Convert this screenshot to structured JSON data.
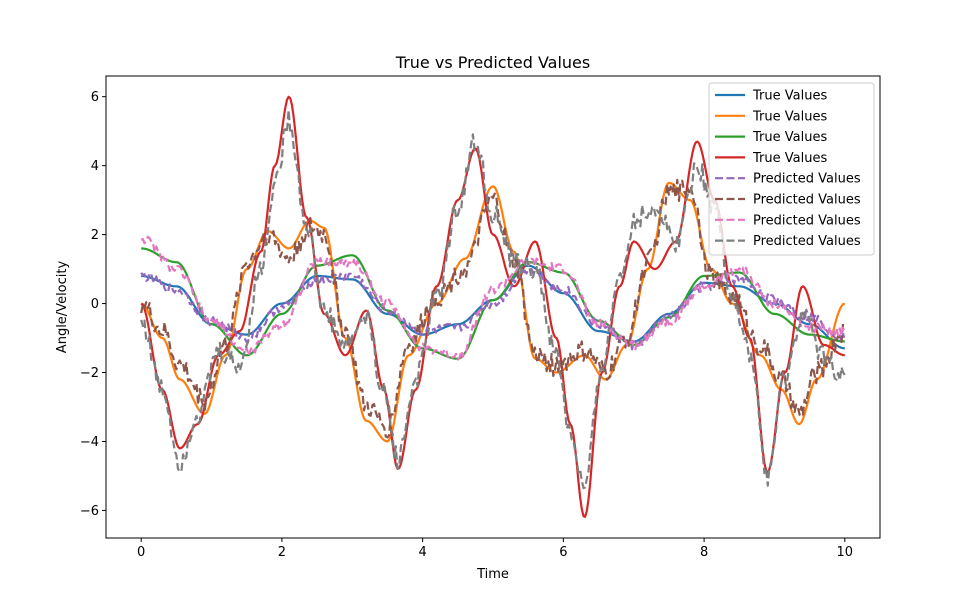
{
  "chart_data": {
    "type": "line",
    "title": "True vs Predicted Values",
    "xlabel": "Time",
    "ylabel": "Angle/Velocity",
    "xlim": [
      -0.5,
      10.5
    ],
    "ylim": [
      -6.8,
      6.6
    ],
    "xticks": [
      0,
      2,
      4,
      6,
      8,
      10
    ],
    "yticks": [
      -6,
      -4,
      -2,
      0,
      2,
      4,
      6
    ],
    "grid": false,
    "legend_position": "top-right",
    "series": [
      {
        "name": "True Values",
        "color": "#1f77b4",
        "style": "solid",
        "x": [
          0,
          0.5,
          1,
          1.5,
          2,
          2.5,
          3,
          3.5,
          4,
          4.5,
          5,
          5.5,
          6,
          6.5,
          7,
          7.5,
          8,
          8.5,
          9,
          9.5,
          10
        ],
        "y": [
          0.8,
          0.5,
          -0.6,
          -0.9,
          0.0,
          0.8,
          0.7,
          -0.3,
          -0.9,
          -0.6,
          0.1,
          1.1,
          0.3,
          -0.8,
          -1.1,
          -0.3,
          0.6,
          0.5,
          0.0,
          -0.6,
          -1.3
        ]
      },
      {
        "name": "True Values",
        "color": "#ff7f0e",
        "style": "solid",
        "x": [
          0,
          0.3,
          0.55,
          0.9,
          1.2,
          1.5,
          1.8,
          2.1,
          2.4,
          2.6,
          2.9,
          3.2,
          3.5,
          3.8,
          4.2,
          4.6,
          5.0,
          5.3,
          5.6,
          5.9,
          6.3,
          6.6,
          6.9,
          7.2,
          7.5,
          7.8,
          8.1,
          8.4,
          8.8,
          9.1,
          9.35,
          9.6,
          10
        ],
        "y": [
          0,
          -1.0,
          -2.2,
          -3.2,
          -1.5,
          1.0,
          2.1,
          1.6,
          2.4,
          2.2,
          -1.0,
          -3.4,
          -4.0,
          -1.5,
          0.0,
          1.3,
          3.4,
          1.5,
          -1.6,
          -2.0,
          -1.5,
          -2.2,
          -1.2,
          1.0,
          3.5,
          3.0,
          1.0,
          0.0,
          -1.5,
          -2.5,
          -3.5,
          -2.2,
          0.0
        ]
      },
      {
        "name": "True Values",
        "color": "#2ca02c",
        "style": "solid",
        "x": [
          0,
          0.5,
          1,
          1.5,
          2,
          2.5,
          3,
          3.5,
          4,
          4.5,
          5,
          5.5,
          6,
          6.5,
          7,
          7.5,
          8,
          8.5,
          9,
          9.5,
          10
        ],
        "y": [
          1.6,
          1.2,
          -0.6,
          -1.5,
          -0.3,
          1.1,
          1.4,
          -0.2,
          -1.3,
          -1.6,
          0.1,
          1.2,
          0.9,
          -0.5,
          -1.2,
          -0.4,
          0.8,
          0.9,
          -0.3,
          -0.9,
          -1.1
        ]
      },
      {
        "name": "True Values",
        "color": "#d62728",
        "style": "solid",
        "x": [
          0,
          0.3,
          0.55,
          0.8,
          1.1,
          1.4,
          1.7,
          1.9,
          2.1,
          2.35,
          2.6,
          2.9,
          3.2,
          3.45,
          3.65,
          3.9,
          4.2,
          4.5,
          4.75,
          5.0,
          5.3,
          5.6,
          5.9,
          6.1,
          6.3,
          6.55,
          6.8,
          7.0,
          7.3,
          7.6,
          7.9,
          8.15,
          8.4,
          8.65,
          8.9,
          9.15,
          9.4,
          9.7,
          10
        ],
        "y": [
          0,
          -2.5,
          -4.2,
          -3.5,
          -1.5,
          -0.8,
          1.5,
          4.0,
          6.0,
          2.5,
          -0.3,
          -1.5,
          -0.2,
          -2.5,
          -4.8,
          -2.5,
          0.5,
          3.0,
          4.5,
          2.0,
          0.5,
          1.8,
          -1.0,
          -3.5,
          -6.2,
          -2.0,
          0.5,
          1.8,
          1.0,
          1.8,
          4.7,
          3.0,
          0.5,
          -1.0,
          -4.9,
          -2.0,
          0.5,
          -1.2,
          -1.5
        ]
      },
      {
        "name": "Predicted Values",
        "color": "#9467bd",
        "style": "dashed",
        "x": [
          0,
          0.5,
          1,
          1.5,
          2,
          2.5,
          3,
          3.5,
          4,
          4.5,
          5,
          5.5,
          6,
          6.5,
          7,
          7.5,
          8,
          8.5,
          9,
          9.5,
          10
        ],
        "y": [
          0.8,
          0.4,
          -0.5,
          -1.0,
          -0.1,
          0.7,
          0.8,
          -0.2,
          -0.8,
          -0.7,
          0.0,
          1.0,
          0.4,
          -0.6,
          -1.2,
          -0.4,
          0.5,
          0.7,
          0.1,
          -0.4,
          -1.0
        ]
      },
      {
        "name": "Predicted Values",
        "color": "#8c564b",
        "style": "dashed",
        "x": [
          0,
          0.3,
          0.55,
          0.9,
          1.2,
          1.5,
          1.8,
          2.1,
          2.4,
          2.6,
          2.9,
          3.2,
          3.5,
          3.8,
          4.2,
          4.6,
          5.0,
          5.3,
          5.6,
          5.9,
          6.3,
          6.6,
          6.9,
          7.2,
          7.5,
          7.8,
          8.1,
          8.4,
          8.8,
          9.1,
          9.35,
          9.6,
          10
        ],
        "y": [
          0,
          -0.8,
          -1.8,
          -2.8,
          -1.2,
          1.2,
          2.0,
          1.3,
          2.2,
          2.0,
          -0.8,
          -3.0,
          -3.6,
          -1.2,
          0.2,
          1.0,
          3.0,
          1.2,
          -1.5,
          -1.8,
          -1.4,
          -2.0,
          -1.0,
          1.2,
          3.2,
          3.4,
          0.8,
          0.2,
          -1.2,
          -2.2,
          -3.2,
          -2.0,
          -0.8
        ]
      },
      {
        "name": "Predicted Values",
        "color": "#e377c2",
        "style": "dashed",
        "x": [
          0,
          0.5,
          1,
          1.5,
          2,
          2.5,
          3,
          3.5,
          4,
          4.5,
          5,
          5.5,
          6,
          6.5,
          7,
          7.5,
          8,
          8.5,
          9,
          9.5,
          10
        ],
        "y": [
          1.9,
          1.0,
          -0.5,
          -1.4,
          -0.6,
          1.2,
          1.2,
          0.0,
          -1.3,
          -1.5,
          0.4,
          1.2,
          1.0,
          -0.6,
          -1.2,
          -0.5,
          0.5,
          1.0,
          0.0,
          -0.7,
          -0.8
        ]
      },
      {
        "name": "Predicted Values",
        "color": "#7f7f7f",
        "style": "dashed",
        "x": [
          0,
          0.3,
          0.55,
          0.8,
          1.1,
          1.4,
          1.7,
          1.9,
          2.1,
          2.35,
          2.6,
          2.9,
          3.2,
          3.45,
          3.65,
          3.9,
          4.2,
          4.5,
          4.75,
          5.0,
          5.3,
          5.6,
          5.9,
          6.1,
          6.3,
          6.55,
          6.8,
          7.0,
          7.3,
          7.6,
          7.9,
          8.15,
          8.4,
          8.65,
          8.9,
          9.15,
          9.4,
          9.7,
          10
        ],
        "y": [
          -0.5,
          -2.5,
          -4.6,
          -3.2,
          -1.4,
          -1.8,
          1.0,
          3.5,
          5.3,
          2.3,
          -0.2,
          -1.2,
          -0.4,
          -2.6,
          -4.5,
          -2.2,
          0.2,
          2.8,
          4.7,
          2.6,
          1.2,
          1.0,
          -1.5,
          -3.8,
          -5.4,
          -1.8,
          0.8,
          2.4,
          2.8,
          1.8,
          4.0,
          2.8,
          0.2,
          -1.5,
          -5.0,
          -2.2,
          -0.3,
          -1.5,
          -2.2
        ]
      }
    ]
  }
}
